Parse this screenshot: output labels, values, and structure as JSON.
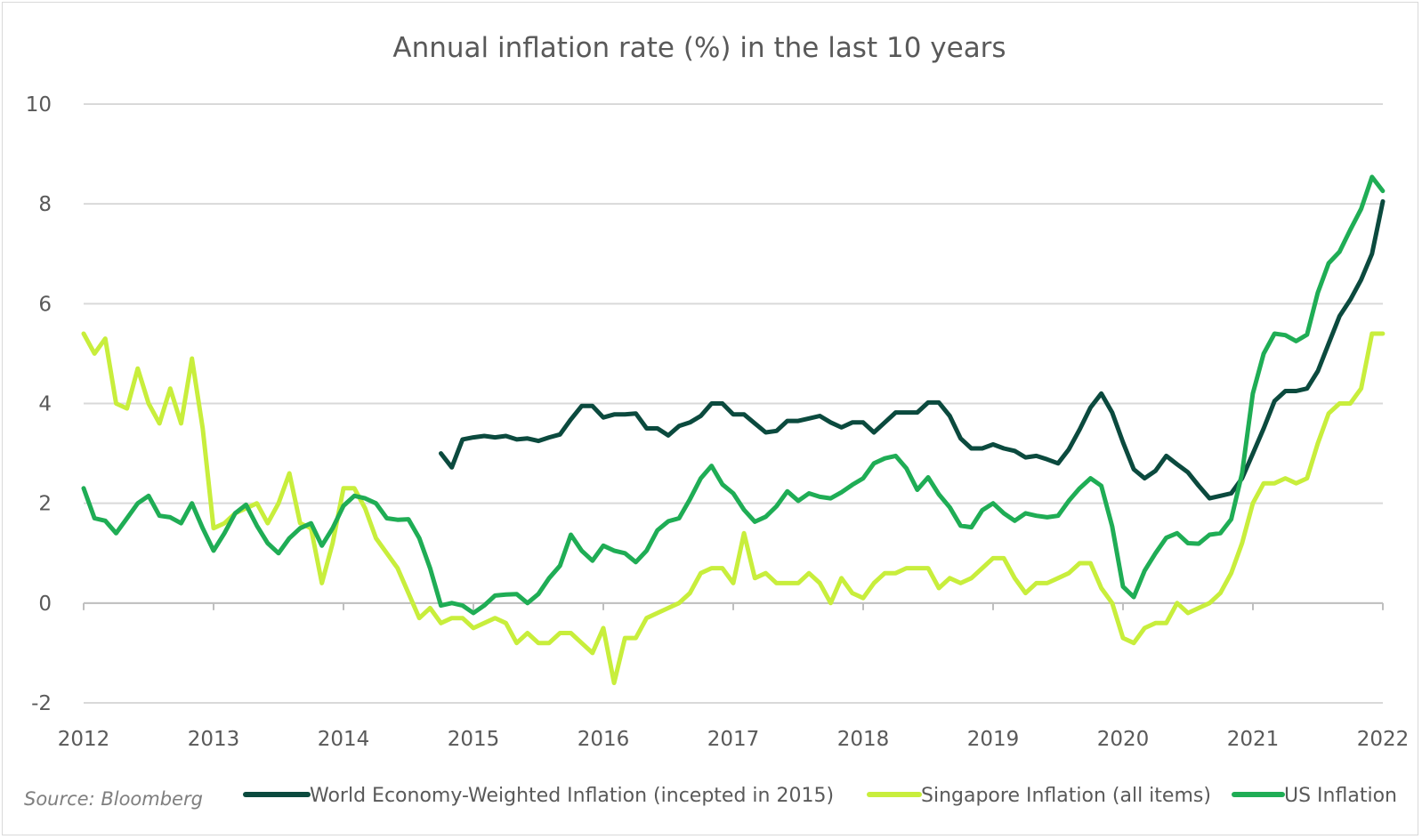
{
  "colors": {
    "world": "#0b4a3e",
    "singapore": "#c8ee3c",
    "us": "#1fad55",
    "grid": "#d9d9d9",
    "axis": "#bfbfbf",
    "text": "#595959"
  },
  "source_note": "Source: Bloomberg",
  "chart_data": {
    "type": "line",
    "title": "Annual inflation rate (%) in the last 10 years",
    "xlabel": "",
    "ylabel": "",
    "ylim": [
      -2,
      10
    ],
    "xlim": [
      2012,
      2022
    ],
    "yticks": [
      -2,
      0,
      2,
      4,
      6,
      8,
      10
    ],
    "yticklabels": [
      "-2",
      "0",
      "2",
      "4",
      "6",
      "8",
      "10"
    ],
    "xticks": [
      2012,
      2013,
      2014,
      2015,
      2016,
      2017,
      2018,
      2019,
      2020,
      2021,
      2022
    ],
    "xticklabels": [
      "2012",
      "2013",
      "2014",
      "2015",
      "2016",
      "2017",
      "2018",
      "2019",
      "2020",
      "2021",
      "2022"
    ],
    "grid": "horizontal",
    "legend_position": "bottom",
    "series": [
      {
        "name": "World Economy-Weighted Inflation (incepted in 2015)",
        "color_key": "world",
        "x_start": 2014.75,
        "step": 0.08333,
        "values": [
          3.0,
          2.72,
          3.28,
          3.32,
          3.35,
          3.32,
          3.35,
          3.28,
          3.3,
          3.25,
          3.32,
          3.38,
          3.68,
          3.95,
          3.95,
          3.72,
          3.78,
          3.78,
          3.8,
          3.5,
          3.5,
          3.36,
          3.55,
          3.62,
          3.75,
          4.0,
          4.0,
          3.78,
          3.78,
          3.6,
          3.42,
          3.45,
          3.65,
          3.65,
          3.7,
          3.75,
          3.62,
          3.52,
          3.62,
          3.62,
          3.42,
          3.62,
          3.82,
          3.82,
          3.82,
          4.02,
          4.02,
          3.75,
          3.3,
          3.1,
          3.1,
          3.18,
          3.1,
          3.05,
          2.92,
          2.95,
          2.88,
          2.8,
          3.08,
          3.48,
          3.92,
          4.2,
          3.82,
          3.22,
          2.68,
          2.5,
          2.65,
          2.95,
          2.78,
          2.62,
          2.35,
          2.1,
          2.15,
          2.2,
          2.5,
          3.0,
          3.5,
          4.05,
          4.25,
          4.25,
          4.3,
          4.65,
          5.2,
          5.75,
          6.08,
          6.48,
          7.0,
          8.05
        ]
      },
      {
        "name": "Singapore Inflation (all items)",
        "color_key": "singapore",
        "x_start": 2012.0,
        "step": 0.08333,
        "values": [
          5.4,
          5.0,
          5.3,
          4.0,
          3.9,
          4.7,
          4.0,
          3.6,
          4.3,
          3.6,
          4.9,
          3.5,
          1.5,
          1.6,
          1.8,
          1.9,
          2.0,
          1.6,
          2.0,
          2.6,
          1.6,
          1.5,
          0.4,
          1.2,
          2.3,
          2.3,
          1.9,
          1.3,
          1.0,
          0.7,
          0.2,
          -0.3,
          -0.1,
          -0.4,
          -0.3,
          -0.3,
          -0.5,
          -0.4,
          -0.3,
          -0.4,
          -0.8,
          -0.6,
          -0.8,
          -0.8,
          -0.6,
          -0.6,
          -0.8,
          -1.0,
          -0.5,
          -1.6,
          -0.7,
          -0.7,
          -0.3,
          -0.2,
          -0.1,
          0.0,
          0.2,
          0.6,
          0.7,
          0.7,
          0.4,
          1.4,
          0.5,
          0.6,
          0.4,
          0.4,
          0.4,
          0.6,
          0.4,
          0.0,
          0.5,
          0.2,
          0.1,
          0.4,
          0.6,
          0.6,
          0.7,
          0.7,
          0.7,
          0.3,
          0.5,
          0.4,
          0.5,
          0.7,
          0.9,
          0.9,
          0.5,
          0.2,
          0.4,
          0.4,
          0.5,
          0.6,
          0.8,
          0.8,
          0.3,
          0.0,
          -0.7,
          -0.8,
          -0.5,
          -0.4,
          -0.4,
          0.0,
          -0.2,
          -0.1,
          0.0,
          0.2,
          0.6,
          1.2,
          2.0,
          2.4,
          2.4,
          2.5,
          2.4,
          2.5,
          3.2,
          3.8,
          4.0,
          4.0,
          4.3,
          5.4,
          5.4
        ]
      },
      {
        "name": "US Inflation",
        "color_key": "us",
        "x_start": 2012.0,
        "step": 0.08333,
        "values": [
          2.3,
          1.7,
          1.65,
          1.4,
          1.7,
          2.0,
          2.15,
          1.75,
          1.72,
          1.6,
          2.0,
          1.5,
          1.05,
          1.4,
          1.8,
          1.97,
          1.55,
          1.2,
          1.0,
          1.3,
          1.5,
          1.6,
          1.15,
          1.5,
          1.95,
          2.15,
          2.1,
          2.0,
          1.7,
          1.67,
          1.68,
          1.3,
          0.7,
          -0.05,
          0.0,
          -0.05,
          -0.2,
          -0.05,
          0.15,
          0.17,
          0.18,
          0.0,
          0.18,
          0.5,
          0.75,
          1.37,
          1.05,
          0.85,
          1.15,
          1.05,
          1.0,
          0.82,
          1.05,
          1.46,
          1.64,
          1.7,
          2.08,
          2.5,
          2.75,
          2.38,
          2.2,
          1.87,
          1.63,
          1.73,
          1.94,
          2.24,
          2.05,
          2.2,
          2.13,
          2.1,
          2.22,
          2.37,
          2.5,
          2.8,
          2.9,
          2.95,
          2.7,
          2.27,
          2.52,
          2.18,
          1.92,
          1.55,
          1.52,
          1.86,
          2.0,
          1.8,
          1.65,
          1.8,
          1.75,
          1.72,
          1.75,
          2.05,
          2.3,
          2.5,
          2.35,
          1.54,
          0.33,
          0.12,
          0.65,
          1.0,
          1.31,
          1.4,
          1.2,
          1.19,
          1.37,
          1.4,
          1.68,
          2.6,
          4.2,
          5.0,
          5.4,
          5.37,
          5.25,
          5.38,
          6.22,
          6.81,
          7.04,
          7.48,
          7.9,
          8.54,
          8.26
        ]
      }
    ]
  }
}
